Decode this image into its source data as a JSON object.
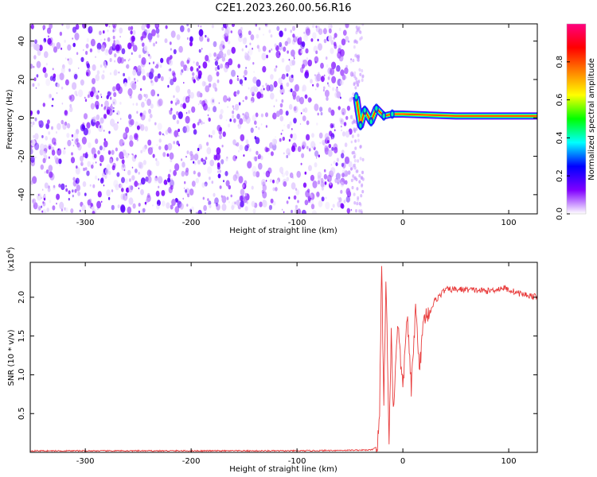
{
  "figure": {
    "title": "C2E1.2023.260.00.56.R16"
  },
  "chart_data": [
    {
      "type": "heatmap",
      "title": "",
      "xlabel": "Height of straight line (km)",
      "ylabel": "Frequency (Hz)",
      "xlim": [
        -352,
        127
      ],
      "ylim": [
        -50,
        49
      ],
      "xticks": [
        -300,
        -200,
        -100,
        0,
        100
      ],
      "yticks": [
        -40,
        -20,
        0,
        20,
        40
      ],
      "noise_region_x": [
        -352,
        -48
      ],
      "signal_trace": [
        {
          "x": -44,
          "y": 11
        },
        {
          "x": -40,
          "y": -4
        },
        {
          "x": -36,
          "y": 4
        },
        {
          "x": -30,
          "y": -2
        },
        {
          "x": -25,
          "y": 5
        },
        {
          "x": -18,
          "y": 1
        },
        {
          "x": -10,
          "y": 2
        },
        {
          "x": 0,
          "y": 2
        },
        {
          "x": 50,
          "y": 1
        },
        {
          "x": 127,
          "y": 1
        }
      ],
      "colorbar": {
        "label": "Normalized spectral amplitude",
        "range": [
          0.0,
          1.0
        ],
        "ticks": [
          "0.0",
          "0.2",
          "0.4",
          "0.6",
          "0.8"
        ],
        "colors": [
          "#ffffff",
          "#8000ff",
          "#0000ff",
          "#00ffff",
          "#00ff00",
          "#ffff00",
          "#ff8000",
          "#ff0000",
          "#ff0080"
        ]
      }
    },
    {
      "type": "line",
      "title": "",
      "xlabel": "Height of straight line (km)",
      "ylabel": "SNR (10 * v/v)",
      "y_scale_label": "(x10",
      "y_scale_exp": "4",
      "y_scale_close": ")",
      "xlim": [
        -352,
        127
      ],
      "ylim": [
        0,
        2.45
      ],
      "xticks": [
        -300,
        -200,
        -100,
        0,
        100
      ],
      "yticks": [
        "0.5",
        "1.0",
        "1.5",
        "2.0"
      ],
      "ytick_values": [
        0.5,
        1.0,
        1.5,
        2.0
      ],
      "color": "#e83b3b",
      "series": [
        {
          "points": [
            {
              "x": -352,
              "y": 0.02
            },
            {
              "x": -100,
              "y": 0.02
            },
            {
              "x": -30,
              "y": 0.03
            },
            {
              "x": -24,
              "y": 0.08
            },
            {
              "x": -22,
              "y": 0.5
            },
            {
              "x": -20,
              "y": 2.45
            },
            {
              "x": -18,
              "y": 0.6
            },
            {
              "x": -16,
              "y": 2.3
            },
            {
              "x": -13,
              "y": 0.1
            },
            {
              "x": -11,
              "y": 1.6
            },
            {
              "x": -9,
              "y": 0.5
            },
            {
              "x": -5,
              "y": 1.7
            },
            {
              "x": 0,
              "y": 0.8
            },
            {
              "x": 4,
              "y": 1.8
            },
            {
              "x": 8,
              "y": 0.8
            },
            {
              "x": 12,
              "y": 1.85
            },
            {
              "x": 16,
              "y": 1.1
            },
            {
              "x": 20,
              "y": 1.75
            },
            {
              "x": 25,
              "y": 1.8
            },
            {
              "x": 30,
              "y": 1.95
            },
            {
              "x": 40,
              "y": 2.1
            },
            {
              "x": 60,
              "y": 2.1
            },
            {
              "x": 80,
              "y": 2.08
            },
            {
              "x": 95,
              "y": 2.12
            },
            {
              "x": 110,
              "y": 2.05
            },
            {
              "x": 127,
              "y": 2.0
            }
          ]
        }
      ]
    }
  ]
}
